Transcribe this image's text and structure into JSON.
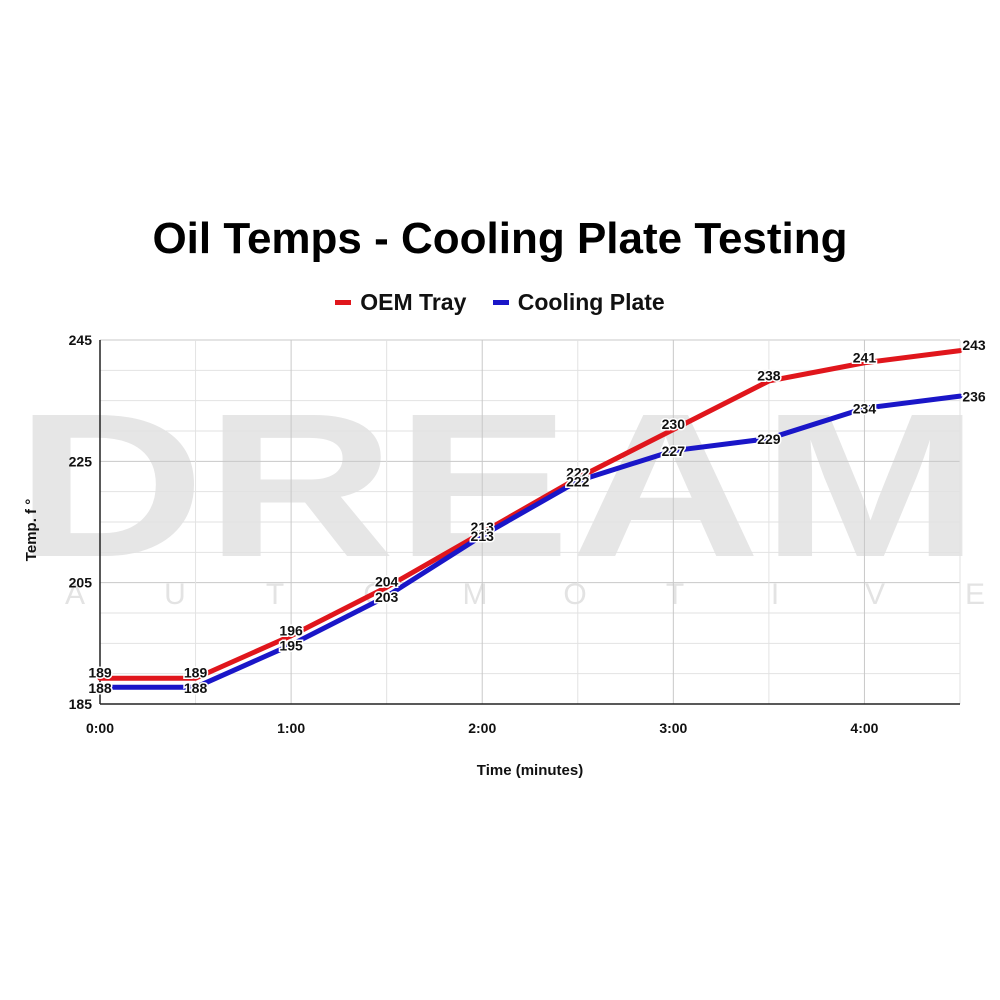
{
  "watermark": {
    "big": "DREAM",
    "small": [
      "A",
      "U",
      "T",
      "O",
      "M",
      "O",
      "T",
      "I",
      "V",
      "E"
    ]
  },
  "chart_data": {
    "type": "line",
    "title": "Oil Temps - Cooling Plate Testing",
    "xlabel": "Time (minutes)",
    "ylabel": "Temp. f °",
    "x_tick_labels": [
      "0:00",
      "1:00",
      "2:00",
      "3:00",
      "4:00"
    ],
    "y_ticks": [
      185,
      205,
      225,
      245
    ],
    "ylim": [
      185,
      245
    ],
    "xlim": [
      0,
      4.5
    ],
    "x": [
      0,
      0.5,
      1,
      1.5,
      2,
      2.5,
      3,
      3.5,
      4,
      4.5
    ],
    "grid": true,
    "legend_position": "top",
    "series": [
      {
        "name": "OEM Tray",
        "color": "#e0161c",
        "values": [
          189,
          189,
          196,
          204,
          213,
          222,
          230,
          238,
          241,
          243
        ],
        "labels": [
          "189",
          "189",
          "196",
          "204",
          "213",
          "222",
          "230",
          "238",
          "241",
          "243"
        ]
      },
      {
        "name": "Cooling Plate",
        "color": "#1a16c8",
        "values": [
          188,
          188,
          195,
          203,
          213,
          222,
          227,
          229,
          234,
          236
        ],
        "labels": [
          "188",
          "188",
          "195",
          "203",
          "213",
          "222",
          "227",
          "229",
          "234",
          "236"
        ]
      }
    ]
  }
}
